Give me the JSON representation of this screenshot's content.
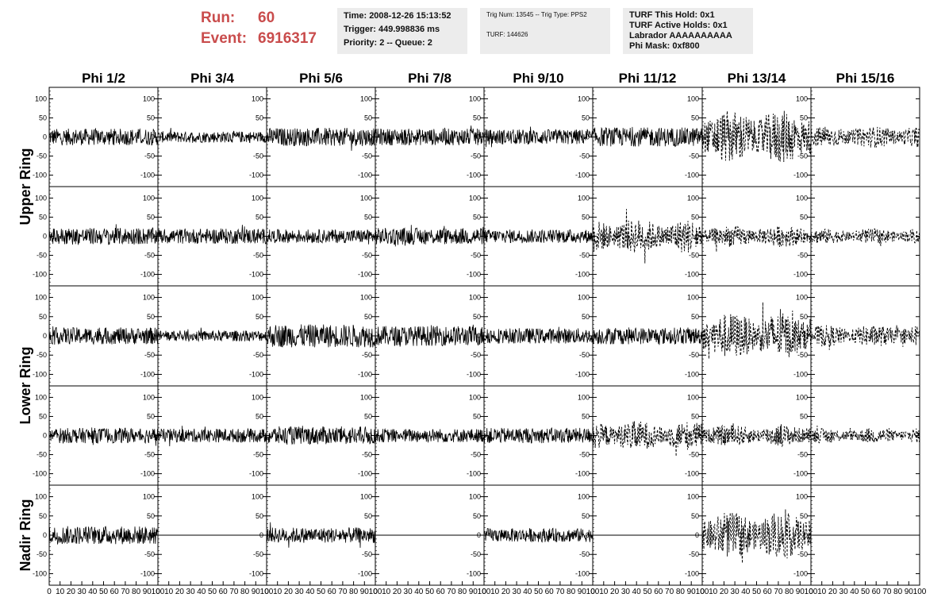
{
  "header": {
    "run_label": "Run:",
    "run_value": "60",
    "event_label": "Event:",
    "event_value": "6916317",
    "time_line": "Time: 2008-12-26 15:13:52",
    "trigger_line": "Trigger: 449.998836 ms",
    "priority_line": "Priority: 2 -- Queue: 2",
    "trig_line": "Trig Num: 13545 -- Trig Type: PPS2",
    "turf_line": "TURF: 144626",
    "turf_hold": "TURF This Hold: 0x1",
    "turf_active": "TURF Active Holds: 0x1",
    "labrador": "Labrador AAAAAAAAAA",
    "phi_mask": "Phi Mask: 0xf800"
  },
  "chart_data": {
    "type": "line",
    "column_titles": [
      "Phi 1/2",
      "Phi 3/4",
      "Phi 5/6",
      "Phi 7/8",
      "Phi 9/10",
      "Phi 11/12",
      "Phi 13/14",
      "Phi 15/16"
    ],
    "row_titles": [
      {
        "label": "Upper Ring",
        "rows": [
          0,
          1
        ]
      },
      {
        "label": "Lower Ring",
        "rows": [
          2,
          3
        ]
      },
      {
        "label": "Nadir Ring",
        "rows": [
          4,
          4
        ]
      }
    ],
    "y_ticks": [
      "100",
      "50",
      "0",
      "-50",
      "-100"
    ],
    "y_tick_values": [
      100,
      50,
      0,
      -50,
      -100
    ],
    "ylim": [
      -130,
      130
    ],
    "xlim": [
      0,
      100
    ],
    "x_ticks": [
      "0",
      "10",
      "20",
      "30",
      "40",
      "50",
      "60",
      "70",
      "80",
      "90",
      "100"
    ],
    "x_tick_values": [
      0,
      10,
      20,
      30,
      40,
      50,
      60,
      70,
      80,
      90,
      100
    ],
    "panels": [
      [
        {
          "style": "solid",
          "amp": 22
        },
        {
          "style": "solid",
          "amp": 15
        },
        {
          "style": "solid",
          "amp": 24
        },
        {
          "style": "solid",
          "amp": 22
        },
        {
          "style": "solid",
          "amp": 20
        },
        {
          "style": "solid",
          "amp": 25
        },
        {
          "style": "dashed",
          "amp": 70
        },
        {
          "style": "dashed",
          "amp": 28
        }
      ],
      [
        {
          "style": "solid",
          "amp": 22
        },
        {
          "style": "solid",
          "amp": 20
        },
        {
          "style": "solid",
          "amp": 18
        },
        {
          "style": "solid",
          "amp": 22
        },
        {
          "style": "solid",
          "amp": 18
        },
        {
          "style": "dashed",
          "amp": 45
        },
        {
          "style": "dashed",
          "amp": 28
        },
        {
          "style": "dashed",
          "amp": 20
        }
      ],
      [
        {
          "style": "solid",
          "amp": 22
        },
        {
          "style": "solid",
          "amp": 14
        },
        {
          "style": "solid",
          "amp": 30
        },
        {
          "style": "solid",
          "amp": 26
        },
        {
          "style": "solid",
          "amp": 20
        },
        {
          "style": "solid",
          "amp": 22
        },
        {
          "style": "dashed",
          "amp": 60
        },
        {
          "style": "dashed",
          "amp": 28
        }
      ],
      [
        {
          "style": "solid",
          "amp": 20
        },
        {
          "style": "solid",
          "amp": 18
        },
        {
          "style": "solid",
          "amp": 24
        },
        {
          "style": "solid",
          "amp": 18
        },
        {
          "style": "solid",
          "amp": 20
        },
        {
          "style": "dashed",
          "amp": 38
        },
        {
          "style": "dashed",
          "amp": 28
        },
        {
          "style": "dashed",
          "amp": 20
        }
      ],
      [
        {
          "style": "solid",
          "amp": 24
        },
        {
          "style": "flat",
          "amp": 0
        },
        {
          "style": "solid",
          "amp": 20
        },
        {
          "style": "flat",
          "amp": 0
        },
        {
          "style": "solid",
          "amp": 18
        },
        {
          "style": "flat",
          "amp": 0
        },
        {
          "style": "dashed",
          "amp": 60
        },
        {
          "style": "flat",
          "amp": 0
        }
      ]
    ]
  }
}
